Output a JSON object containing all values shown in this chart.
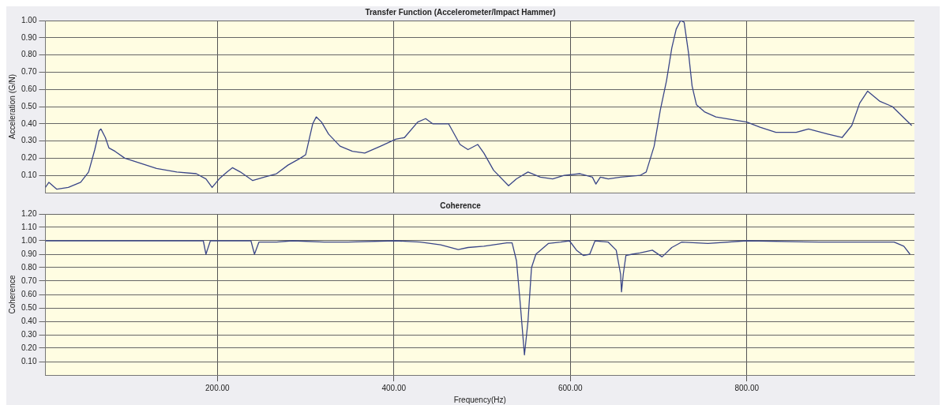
{
  "chart_data": [
    {
      "type": "line",
      "title": "Transfer Function (Accelerometer/Impact Hammer)",
      "ylabel": "Acceleration (G/N)",
      "xlim": [
        5,
        990
      ],
      "xticks": [
        200,
        400,
        600,
        800
      ],
      "ylim": [
        0,
        1
      ],
      "yticks": [
        {
          "value": 0.1,
          "label": "0.10"
        },
        {
          "value": 0.2,
          "label": "0.20"
        },
        {
          "value": 0.3,
          "label": "0.30"
        },
        {
          "value": 0.4,
          "label": "0.40"
        },
        {
          "value": 0.5,
          "label": "0.50"
        },
        {
          "value": 0.6,
          "label": "0.60"
        },
        {
          "value": 0.7,
          "label": "0.70"
        },
        {
          "value": 0.8,
          "label": "0.80"
        },
        {
          "value": 0.9,
          "label": "0.90"
        },
        {
          "value": 1,
          "label": "1.00"
        }
      ],
      "tick_labels": "y",
      "grid": true,
      "legend": false,
      "marker": "none",
      "line_style": "solid",
      "series": [
        {
          "color": "#3a4688",
          "x": [
            5,
            9,
            18,
            31,
            45,
            54,
            61,
            66,
            68,
            73,
            77,
            84,
            95,
            113,
            131,
            154,
            176,
            187,
            194,
            202,
            211,
            217,
            226,
            240,
            253,
            267,
            280,
            294,
            300,
            308,
            312,
            318,
            326,
            339,
            353,
            367,
            385,
            402,
            412,
            427,
            436,
            444,
            462,
            475,
            484,
            495,
            502,
            513,
            530,
            539,
            552,
            566,
            580,
            593,
            611,
            625,
            629,
            634,
            643,
            657,
            679,
            686,
            695,
            702,
            709,
            715,
            720,
            725,
            729,
            734,
            738,
            743,
            752,
            765,
            800,
            815,
            833,
            856,
            870,
            892,
            908,
            919,
            928,
            937,
            951,
            965,
            981,
            987
          ],
          "values": [
            0.03,
            0.06,
            0.02,
            0.03,
            0.06,
            0.12,
            0.25,
            0.36,
            0.37,
            0.32,
            0.26,
            0.24,
            0.2,
            0.17,
            0.14,
            0.12,
            0.11,
            0.08,
            0.03,
            0.08,
            0.12,
            0.145,
            0.12,
            0.07,
            0.09,
            0.11,
            0.16,
            0.2,
            0.22,
            0.4,
            0.44,
            0.41,
            0.34,
            0.27,
            0.24,
            0.23,
            0.27,
            0.31,
            0.32,
            0.41,
            0.43,
            0.4,
            0.4,
            0.28,
            0.25,
            0.28,
            0.23,
            0.13,
            0.04,
            0.08,
            0.12,
            0.09,
            0.08,
            0.1,
            0.11,
            0.09,
            0.05,
            0.09,
            0.08,
            0.09,
            0.1,
            0.12,
            0.27,
            0.48,
            0.65,
            0.84,
            0.95,
            1,
            0.99,
            0.81,
            0.62,
            0.51,
            0.47,
            0.44,
            0.41,
            0.38,
            0.35,
            0.35,
            0.37,
            0.34,
            0.32,
            0.39,
            0.52,
            0.59,
            0.53,
            0.5,
            0.42,
            0.39
          ]
        }
      ]
    },
    {
      "type": "line",
      "title": "Coherence",
      "ylabel": "Coherence",
      "xlabel": "Frequency(Hz)",
      "xlim": [
        5,
        990
      ],
      "xticks": [
        {
          "value": 200,
          "label": "200.00"
        },
        {
          "value": 400,
          "label": "400.00"
        },
        {
          "value": 600,
          "label": "600.00"
        },
        {
          "value": 800,
          "label": "800.00"
        }
      ],
      "ylim": [
        0,
        1.2
      ],
      "yticks": [
        {
          "value": 0.1,
          "label": "0.10"
        },
        {
          "value": 0.2,
          "label": "0.20"
        },
        {
          "value": 0.3,
          "label": "0.30"
        },
        {
          "value": 0.4,
          "label": "0.40"
        },
        {
          "value": 0.5,
          "label": "0.50"
        },
        {
          "value": 0.6,
          "label": "0.60"
        },
        {
          "value": 0.7,
          "label": "0.70"
        },
        {
          "value": 0.8,
          "label": "0.80"
        },
        {
          "value": 0.9,
          "label": "0.90"
        },
        {
          "value": 1,
          "label": "1.00"
        },
        {
          "value": 1.1,
          "label": "1.10"
        },
        {
          "value": 1.2,
          "label": "1.20"
        }
      ],
      "grid": true,
      "legend": false,
      "marker": "none",
      "line_style": "solid",
      "series": [
        {
          "color": "#3a4688",
          "x": [
            5,
            184,
            187,
            192,
            238,
            242,
            247,
            267,
            285,
            321,
            348,
            402,
            430,
            453,
            473,
            484,
            502,
            528,
            534,
            539,
            543,
            548,
            552,
            556,
            561,
            575,
            589,
            599,
            607,
            615,
            622,
            628,
            643,
            652,
            657,
            658,
            660,
            663,
            670,
            679,
            693,
            704,
            715,
            726,
            756,
            800,
            883,
            915,
            967,
            978,
            985
          ],
          "values": [
            1,
            1,
            0.9,
            1,
            1,
            0.9,
            0.99,
            0.99,
            1,
            0.99,
            0.99,
            1,
            0.99,
            0.97,
            0.935,
            0.95,
            0.96,
            0.985,
            0.985,
            0.85,
            0.55,
            0.15,
            0.4,
            0.8,
            0.9,
            0.98,
            0.99,
            1,
            0.93,
            0.89,
            0.9,
            1,
            0.99,
            0.93,
            0.75,
            0.62,
            0.75,
            0.89,
            0.9,
            0.91,
            0.93,
            0.88,
            0.95,
            0.99,
            0.98,
            1,
            0.99,
            0.99,
            0.99,
            0.96,
            0.9
          ]
        }
      ]
    }
  ]
}
